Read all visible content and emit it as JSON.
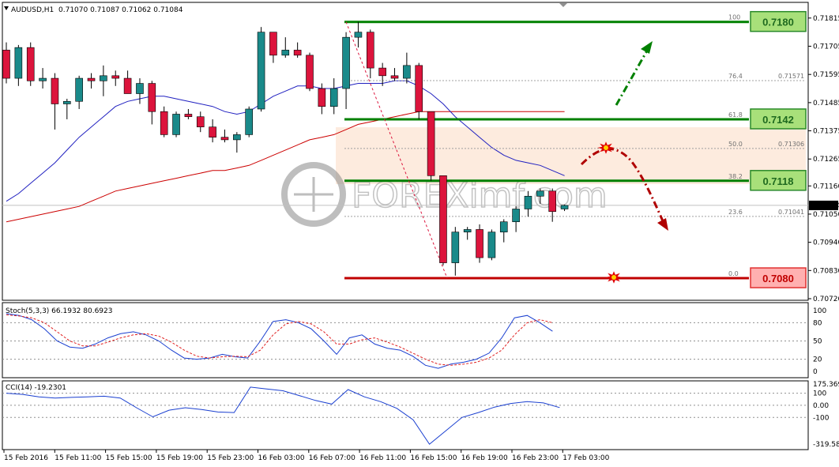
{
  "header": {
    "symbol": "AUDUSD,H1",
    "ohlc": "0.71070 0.71087 0.71062 0.71084"
  },
  "watermark": "FOREXimf.com",
  "colors": {
    "bull": "#1a8a8a",
    "bear": "#dc143c",
    "green": "#008000",
    "red": "#c00000",
    "zone": "#fde8d8",
    "ma_fast": "#2020c0",
    "ma_slow": "#cc0000"
  },
  "price_axis": {
    "ticks": [
      "0.71815",
      "0.71705",
      "0.71595",
      "0.71485",
      "0.71375",
      "0.71265",
      "0.71160",
      "0.71050",
      "0.70940",
      "0.70830",
      "0.70720"
    ],
    "current": "0.71084"
  },
  "fibo": {
    "levels": [
      {
        "pct": "100",
        "price": 0.718
      },
      {
        "pct": "76.4",
        "price": 0.71571,
        "text": "0.71571"
      },
      {
        "pct": "61.8",
        "price": 0.7142
      },
      {
        "pct": "50.0",
        "price": 0.71306,
        "text": "0.71306"
      },
      {
        "pct": "38.2",
        "price": 0.7118
      },
      {
        "pct": "23.6",
        "price": 0.71041,
        "text": "0.71041"
      },
      {
        "pct": "0.0",
        "price": 0.708
      }
    ]
  },
  "level_boxes": [
    {
      "label": "0.7180",
      "price": 0.718,
      "kind": "green"
    },
    {
      "label": "0.7142",
      "price": 0.7142,
      "kind": "green"
    },
    {
      "label": "0.7118",
      "price": 0.7118,
      "kind": "green"
    },
    {
      "label": "0.7080",
      "price": 0.708,
      "kind": "red"
    }
  ],
  "stoch": {
    "label": "Stoch(5,3,3) 66.1932 80.6923",
    "ticks": [
      "100",
      "80",
      "50",
      "20",
      "0"
    ]
  },
  "cci": {
    "label": "CCI(14) -19.2301",
    "ticks": [
      "175.3694",
      "100",
      "0.00",
      "-100",
      "-319.5846"
    ]
  },
  "time_axis": [
    "15 Feb 2016",
    "15 Feb 11:00",
    "15 Feb 15:00",
    "15 Feb 19:00",
    "15 Feb 23:00",
    "16 Feb 03:00",
    "16 Feb 07:00",
    "16 Feb 11:00",
    "16 Feb 15:00",
    "16 Feb 19:00",
    "16 Feb 23:00",
    "17 Feb 03:00"
  ],
  "chart_data": {
    "type": "candlestick",
    "title": "AUDUSD,H1",
    "y_unit": "price",
    "candles": [
      [
        0.7169,
        0.7172,
        0.7156,
        0.7158
      ],
      [
        0.7158,
        0.7171,
        0.7155,
        0.717
      ],
      [
        0.717,
        0.7172,
        0.7155,
        0.7157
      ],
      [
        0.7157,
        0.7162,
        0.7154,
        0.7158
      ],
      [
        0.7158,
        0.716,
        0.7138,
        0.7148
      ],
      [
        0.7148,
        0.715,
        0.7142,
        0.7149
      ],
      [
        0.7149,
        0.7159,
        0.7146,
        0.7158
      ],
      [
        0.7158,
        0.716,
        0.7154,
        0.7157
      ],
      [
        0.7157,
        0.7163,
        0.7151,
        0.7159
      ],
      [
        0.7159,
        0.7161,
        0.7155,
        0.7158
      ],
      [
        0.7158,
        0.7161,
        0.7152,
        0.7152
      ],
      [
        0.7152,
        0.7158,
        0.7148,
        0.7156
      ],
      [
        0.7156,
        0.7157,
        0.714,
        0.7145
      ],
      [
        0.7145,
        0.7147,
        0.7135,
        0.7136
      ],
      [
        0.7136,
        0.7145,
        0.7135,
        0.7144
      ],
      [
        0.7144,
        0.7146,
        0.7142,
        0.7143
      ],
      [
        0.7143,
        0.7145,
        0.7137,
        0.7139
      ],
      [
        0.7139,
        0.7142,
        0.7133,
        0.7135
      ],
      [
        0.7135,
        0.7138,
        0.7133,
        0.7134
      ],
      [
        0.7134,
        0.7137,
        0.7129,
        0.7136
      ],
      [
        0.7136,
        0.7147,
        0.7135,
        0.7146
      ],
      [
        0.7146,
        0.7178,
        0.7145,
        0.7176
      ],
      [
        0.7176,
        0.7176,
        0.7164,
        0.7167
      ],
      [
        0.7167,
        0.7174,
        0.7166,
        0.7169
      ],
      [
        0.7169,
        0.7172,
        0.7166,
        0.7167
      ],
      [
        0.7167,
        0.7168,
        0.7153,
        0.7154
      ],
      [
        0.7154,
        0.7156,
        0.7144,
        0.7147
      ],
      [
        0.7147,
        0.7158,
        0.7144,
        0.7154
      ],
      [
        0.7154,
        0.7176,
        0.7146,
        0.7174
      ],
      [
        0.7174,
        0.718,
        0.717,
        0.7176
      ],
      [
        0.7176,
        0.7177,
        0.7158,
        0.7162
      ],
      [
        0.7162,
        0.7164,
        0.7155,
        0.7159
      ],
      [
        0.7159,
        0.7162,
        0.7157,
        0.7158
      ],
      [
        0.7158,
        0.7168,
        0.7156,
        0.7163
      ],
      [
        0.7163,
        0.7164,
        0.7142,
        0.7145
      ],
      [
        0.7145,
        0.7145,
        0.7118,
        0.712
      ],
      [
        0.712,
        0.712,
        0.7085,
        0.7086
      ],
      [
        0.7086,
        0.71,
        0.7081,
        0.7098
      ],
      [
        0.7098,
        0.71,
        0.7095,
        0.7099
      ],
      [
        0.7099,
        0.7101,
        0.7086,
        0.7088
      ],
      [
        0.7088,
        0.7099,
        0.7087,
        0.7098
      ],
      [
        0.7098,
        0.7103,
        0.7094,
        0.7102
      ],
      [
        0.7102,
        0.7108,
        0.7098,
        0.7107
      ],
      [
        0.7107,
        0.7114,
        0.7104,
        0.7112
      ],
      [
        0.7112,
        0.7115,
        0.7109,
        0.7114
      ],
      [
        0.7114,
        0.7115,
        0.7102,
        0.7106
      ],
      [
        0.7107,
        0.71087,
        0.71062,
        0.71084
      ]
    ],
    "ma_fast": [
      0.711,
      0.7113,
      0.7117,
      0.7121,
      0.7125,
      0.713,
      0.7135,
      0.7139,
      0.7143,
      0.7147,
      0.7149,
      0.715,
      0.7151,
      0.7151,
      0.715,
      0.7149,
      0.7148,
      0.7147,
      0.7145,
      0.7144,
      0.7145,
      0.7148,
      0.7151,
      0.7153,
      0.7155,
      0.7155,
      0.7154,
      0.7154,
      0.7155,
      0.7156,
      0.7156,
      0.7156,
      0.7157,
      0.7157,
      0.7155,
      0.7152,
      0.7148,
      0.7143,
      0.7139,
      0.7135,
      0.7131,
      0.7128,
      0.7126,
      0.7125,
      0.7124,
      0.7122,
      0.712
    ],
    "ma_slow": [
      0.7102,
      0.7103,
      0.7104,
      0.7105,
      0.7106,
      0.7107,
      0.7108,
      0.711,
      0.7112,
      0.7114,
      0.7115,
      0.7116,
      0.7117,
      0.7118,
      0.7119,
      0.712,
      0.7121,
      0.7122,
      0.7122,
      0.7123,
      0.7124,
      0.7126,
      0.7128,
      0.713,
      0.7132,
      0.7134,
      0.7135,
      0.7136,
      0.7138,
      0.714,
      0.7141,
      0.7142,
      0.7143,
      0.7144,
      0.7145,
      0.7145,
      0.7145,
      0.7145,
      0.7145,
      0.7145,
      0.7145,
      0.7145,
      0.7145,
      0.7145,
      0.7145,
      0.7145,
      0.7145
    ],
    "stoch_main": [
      95,
      92,
      85,
      70,
      50,
      40,
      38,
      45,
      55,
      62,
      65,
      60,
      50,
      35,
      22,
      20,
      22,
      28,
      24,
      22,
      50,
      82,
      85,
      80,
      70,
      50,
      28,
      55,
      60,
      45,
      38,
      35,
      25,
      10,
      5,
      12,
      15,
      20,
      30,
      55,
      88,
      92,
      80,
      66
    ],
    "stoch_signal": [
      93,
      91,
      88,
      80,
      65,
      50,
      42,
      42,
      48,
      55,
      60,
      62,
      58,
      48,
      35,
      25,
      22,
      24,
      25,
      24,
      35,
      60,
      78,
      82,
      78,
      65,
      45,
      45,
      52,
      55,
      48,
      40,
      30,
      20,
      12,
      10,
      12,
      15,
      22,
      35,
      60,
      80,
      85,
      80
    ],
    "cci": [
      100,
      90,
      70,
      60,
      65,
      70,
      75,
      60,
      -20,
      -95,
      -40,
      -20,
      -35,
      -55,
      -60,
      150,
      135,
      120,
      80,
      40,
      10,
      130,
      70,
      30,
      -25,
      -120,
      -320,
      -210,
      -100,
      -60,
      -15,
      15,
      30,
      20,
      -19
    ],
    "ylim": [
      0.7072,
      0.7187
    ]
  }
}
